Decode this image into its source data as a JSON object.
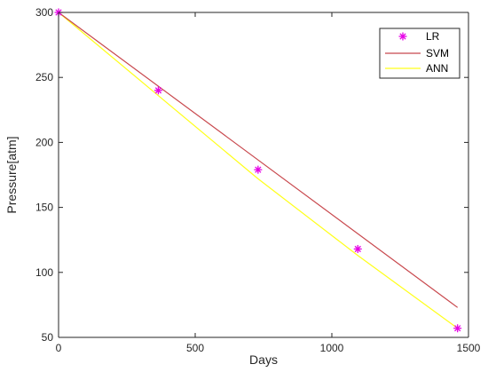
{
  "colors": {
    "lr": "#e600e6",
    "svm": "#c8484d",
    "ann": "#ffff1a",
    "axis": "#262626",
    "legend_border": "#262626"
  },
  "chart_data": {
    "type": "line",
    "title": "",
    "xlabel": "Days",
    "ylabel": "Pressure[atm]",
    "xlim": [
      0,
      1500
    ],
    "ylim": [
      50,
      300
    ],
    "xticks": [
      0,
      500,
      1000,
      1500
    ],
    "xtick_labels": [
      "0",
      "500",
      "1000",
      "1500"
    ],
    "yticks": [
      50,
      100,
      150,
      200,
      250,
      300
    ],
    "ytick_labels": [
      "50",
      "100",
      "150",
      "200",
      "250",
      "300"
    ],
    "grid": false,
    "legend_position": "top-right",
    "series": [
      {
        "name": "LR",
        "type": "scatter",
        "marker": "asterisk",
        "color": "#e600e6",
        "x": [
          0,
          365,
          730,
          1095,
          1460
        ],
        "y": [
          300,
          240,
          179,
          118,
          57
        ]
      },
      {
        "name": "SVM",
        "type": "line",
        "color": "#c8484d",
        "x": [
          0,
          1460
        ],
        "y": [
          300,
          73
        ]
      },
      {
        "name": "ANN",
        "type": "line",
        "color": "#ffff1a",
        "x": [
          0,
          365,
          730,
          1095,
          1460
        ],
        "y": [
          300,
          236,
          172,
          113,
          57
        ]
      }
    ]
  }
}
